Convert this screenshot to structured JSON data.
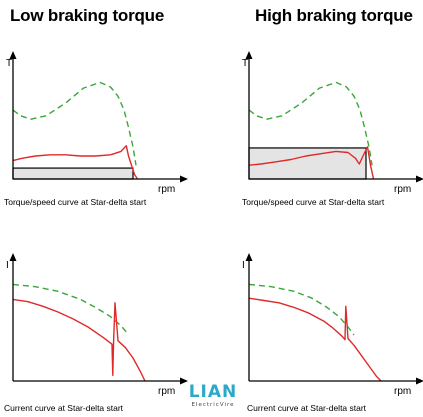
{
  "titles": {
    "left": "Low braking torque",
    "right": "High braking torque"
  },
  "captions": {
    "torque_left": "Torque/speed curve at Star-delta start",
    "torque_right": "Torque/speed curve at Star-delta start",
    "current_left": "Current curve at Star-delta start",
    "current_right": "Current curve at Star-delta start"
  },
  "logo": {
    "word": "LIAN",
    "sub": "ElectricVire"
  },
  "colors": {
    "dashed_green": "#3aa63a",
    "red": "#e02a2a",
    "load_fill": "#e4e4e4",
    "axis": "#000000"
  },
  "chart_data": [
    {
      "id": "torque-low",
      "type": "line",
      "title": "Low braking torque",
      "ylabel": "T",
      "xlabel": "rpm",
      "xlim": [
        0,
        1
      ],
      "ylim": [
        0,
        1
      ],
      "series": [
        {
          "style": "dashed-green",
          "x": [
            0,
            0.05,
            0.12,
            0.22,
            0.35,
            0.47,
            0.58,
            0.65,
            0.7,
            0.74,
            0.77,
            0.8,
            0.82
          ],
          "y": [
            0.6,
            0.55,
            0.52,
            0.55,
            0.66,
            0.79,
            0.84,
            0.8,
            0.72,
            0.6,
            0.45,
            0.28,
            0.12
          ]
        },
        {
          "style": "red",
          "x": [
            0,
            0.06,
            0.15,
            0.25,
            0.35,
            0.45,
            0.55,
            0.65,
            0.72,
            0.755,
            0.77,
            0.79,
            0.81,
            0.83
          ],
          "y": [
            0.16,
            0.18,
            0.2,
            0.21,
            0.21,
            0.2,
            0.2,
            0.21,
            0.24,
            0.29,
            0.2,
            0.12,
            0.04,
            0.0
          ]
        },
        {
          "style": "load-area",
          "x": [
            0,
            0.8
          ],
          "y": [
            0.095,
            0.095
          ]
        }
      ]
    },
    {
      "id": "torque-high",
      "type": "line",
      "title": "High braking torque",
      "ylabel": "T",
      "xlabel": "rpm",
      "xlim": [
        0,
        1
      ],
      "ylim": [
        0,
        1
      ],
      "series": [
        {
          "style": "dashed-green",
          "x": [
            0,
            0.05,
            0.12,
            0.22,
            0.35,
            0.47,
            0.58,
            0.65,
            0.7,
            0.74,
            0.77,
            0.8,
            0.82
          ],
          "y": [
            0.6,
            0.55,
            0.52,
            0.55,
            0.66,
            0.79,
            0.84,
            0.8,
            0.72,
            0.6,
            0.45,
            0.28,
            0.12
          ]
        },
        {
          "style": "red",
          "x": [
            0,
            0.08,
            0.18,
            0.28,
            0.38,
            0.48,
            0.58,
            0.66,
            0.71,
            0.735,
            0.76,
            0.79,
            0.81,
            0.83
          ],
          "y": [
            0.12,
            0.13,
            0.15,
            0.17,
            0.2,
            0.22,
            0.24,
            0.23,
            0.18,
            0.13,
            0.2,
            0.28,
            0.12,
            0.0
          ]
        },
        {
          "style": "load-area",
          "x": [
            0,
            0.78
          ],
          "y": [
            0.27,
            0.27
          ]
        }
      ]
    },
    {
      "id": "current-low",
      "type": "line",
      "ylabel": "I",
      "xlabel": "rpm",
      "xlim": [
        0,
        1
      ],
      "ylim": [
        0,
        1
      ],
      "series": [
        {
          "style": "dashed-green",
          "x": [
            0,
            0.15,
            0.3,
            0.45,
            0.55,
            0.65,
            0.72,
            0.76
          ],
          "y": [
            0.84,
            0.82,
            0.78,
            0.71,
            0.64,
            0.56,
            0.48,
            0.42
          ]
        },
        {
          "style": "red",
          "x": [
            0,
            0.1,
            0.2,
            0.3,
            0.4,
            0.5,
            0.6,
            0.66,
            0.665,
            0.67,
            0.68,
            0.7,
            0.75,
            0.8,
            0.85,
            0.88
          ],
          "y": [
            0.71,
            0.69,
            0.65,
            0.6,
            0.54,
            0.47,
            0.38,
            0.32,
            0.05,
            0.32,
            0.68,
            0.35,
            0.29,
            0.2,
            0.08,
            0.0
          ]
        }
      ]
    },
    {
      "id": "current-high",
      "type": "line",
      "ylabel": "I",
      "xlabel": "rpm",
      "xlim": [
        0,
        1
      ],
      "ylim": [
        0,
        1
      ],
      "series": [
        {
          "style": "dashed-green",
          "x": [
            0,
            0.15,
            0.3,
            0.42,
            0.52,
            0.6,
            0.66,
            0.7
          ],
          "y": [
            0.84,
            0.82,
            0.78,
            0.72,
            0.64,
            0.56,
            0.47,
            0.4
          ]
        },
        {
          "style": "red",
          "x": [
            0,
            0.1,
            0.2,
            0.3,
            0.4,
            0.5,
            0.56,
            0.62,
            0.64,
            0.645,
            0.66,
            0.7,
            0.75,
            0.8,
            0.85,
            0.88
          ],
          "y": [
            0.72,
            0.7,
            0.68,
            0.64,
            0.59,
            0.52,
            0.46,
            0.39,
            0.36,
            0.65,
            0.37,
            0.31,
            0.22,
            0.13,
            0.04,
            0.0
          ]
        }
      ]
    }
  ]
}
